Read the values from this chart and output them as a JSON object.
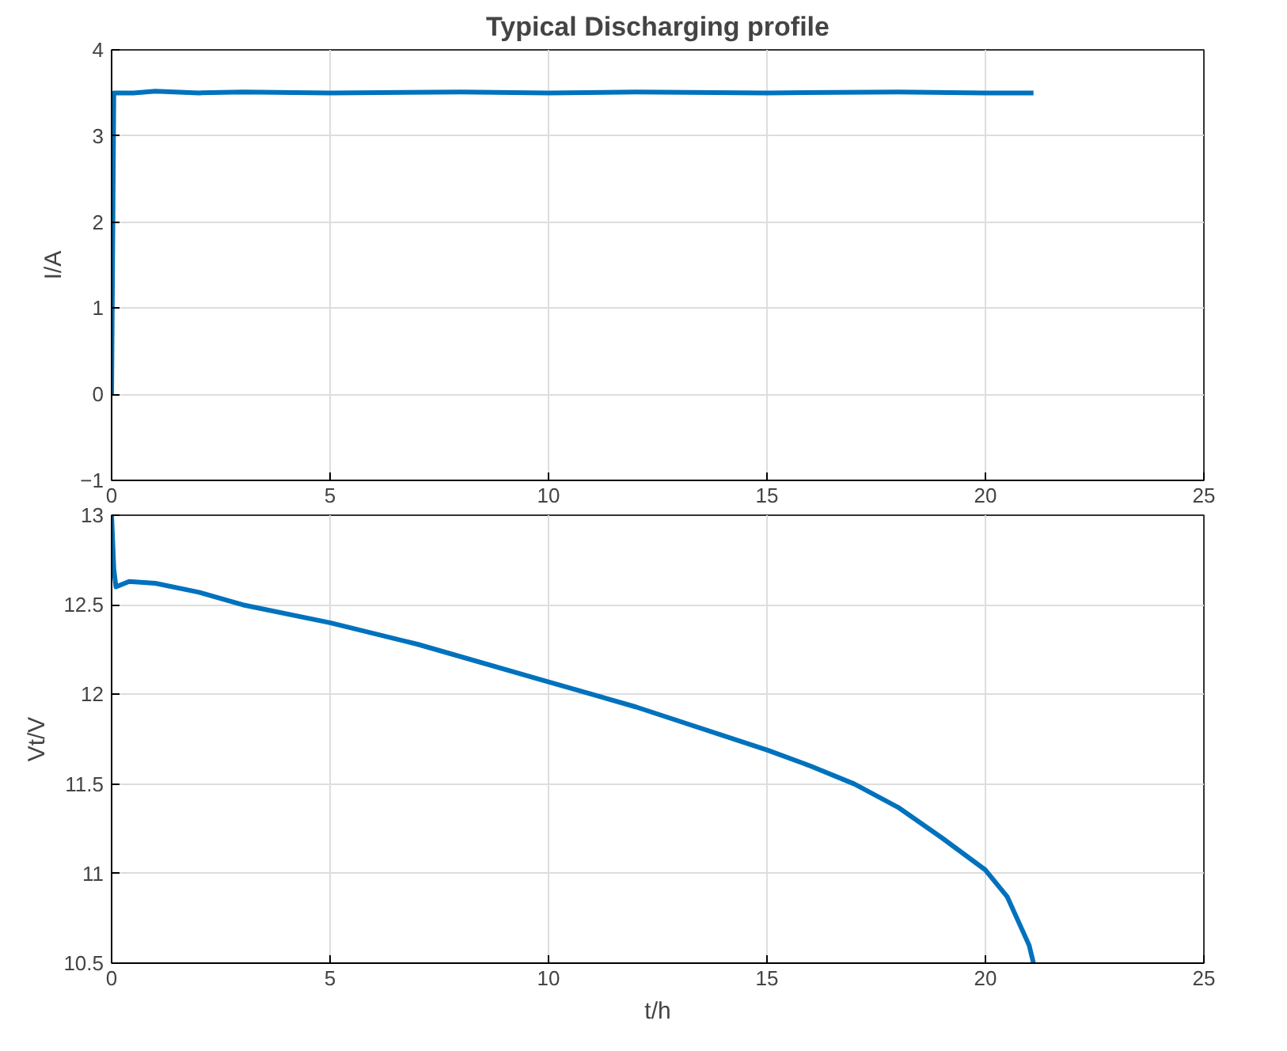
{
  "chart_data": [
    {
      "type": "line",
      "title": "Typical Discharging profile",
      "ylabel": "I/A",
      "x": [
        0,
        0.05,
        0.5,
        1,
        2,
        3,
        5,
        8,
        10,
        12,
        15,
        18,
        20,
        21.1
      ],
      "series": [
        {
          "color": "#0072bd",
          "values": [
            0,
            3.5,
            3.5,
            3.52,
            3.5,
            3.51,
            3.5,
            3.51,
            3.5,
            3.51,
            3.5,
            3.51,
            3.5,
            3.5
          ]
        }
      ],
      "xlim": [
        0,
        25
      ],
      "xticks": [
        0,
        5,
        10,
        15,
        20,
        25
      ],
      "ylim": [
        -1,
        4
      ],
      "yticks": [
        -1,
        0,
        1,
        2,
        3,
        4
      ],
      "grid": true,
      "line_style": "solid"
    },
    {
      "type": "line",
      "xlabel": "t/h",
      "ylabel": "Vt/V",
      "x": [
        0,
        0.05,
        0.1,
        0.4,
        1,
        2,
        3,
        5,
        7,
        10,
        12,
        15,
        16,
        17,
        18,
        19,
        20,
        20.5,
        21,
        21.1
      ],
      "series": [
        {
          "color": "#0072bd",
          "values": [
            13,
            12.7,
            12.6,
            12.63,
            12.62,
            12.57,
            12.5,
            12.4,
            12.28,
            12.07,
            11.93,
            11.69,
            11.6,
            11.5,
            11.37,
            11.2,
            11.02,
            10.87,
            10.6,
            10.5
          ]
        }
      ],
      "xlim": [
        0,
        25
      ],
      "xticks": [
        0,
        5,
        10,
        15,
        20,
        25
      ],
      "ylim": [
        10.5,
        13
      ],
      "yticks": [
        10.5,
        11,
        11.5,
        12,
        12.5,
        13
      ],
      "grid": true,
      "line_style": "solid"
    }
  ]
}
